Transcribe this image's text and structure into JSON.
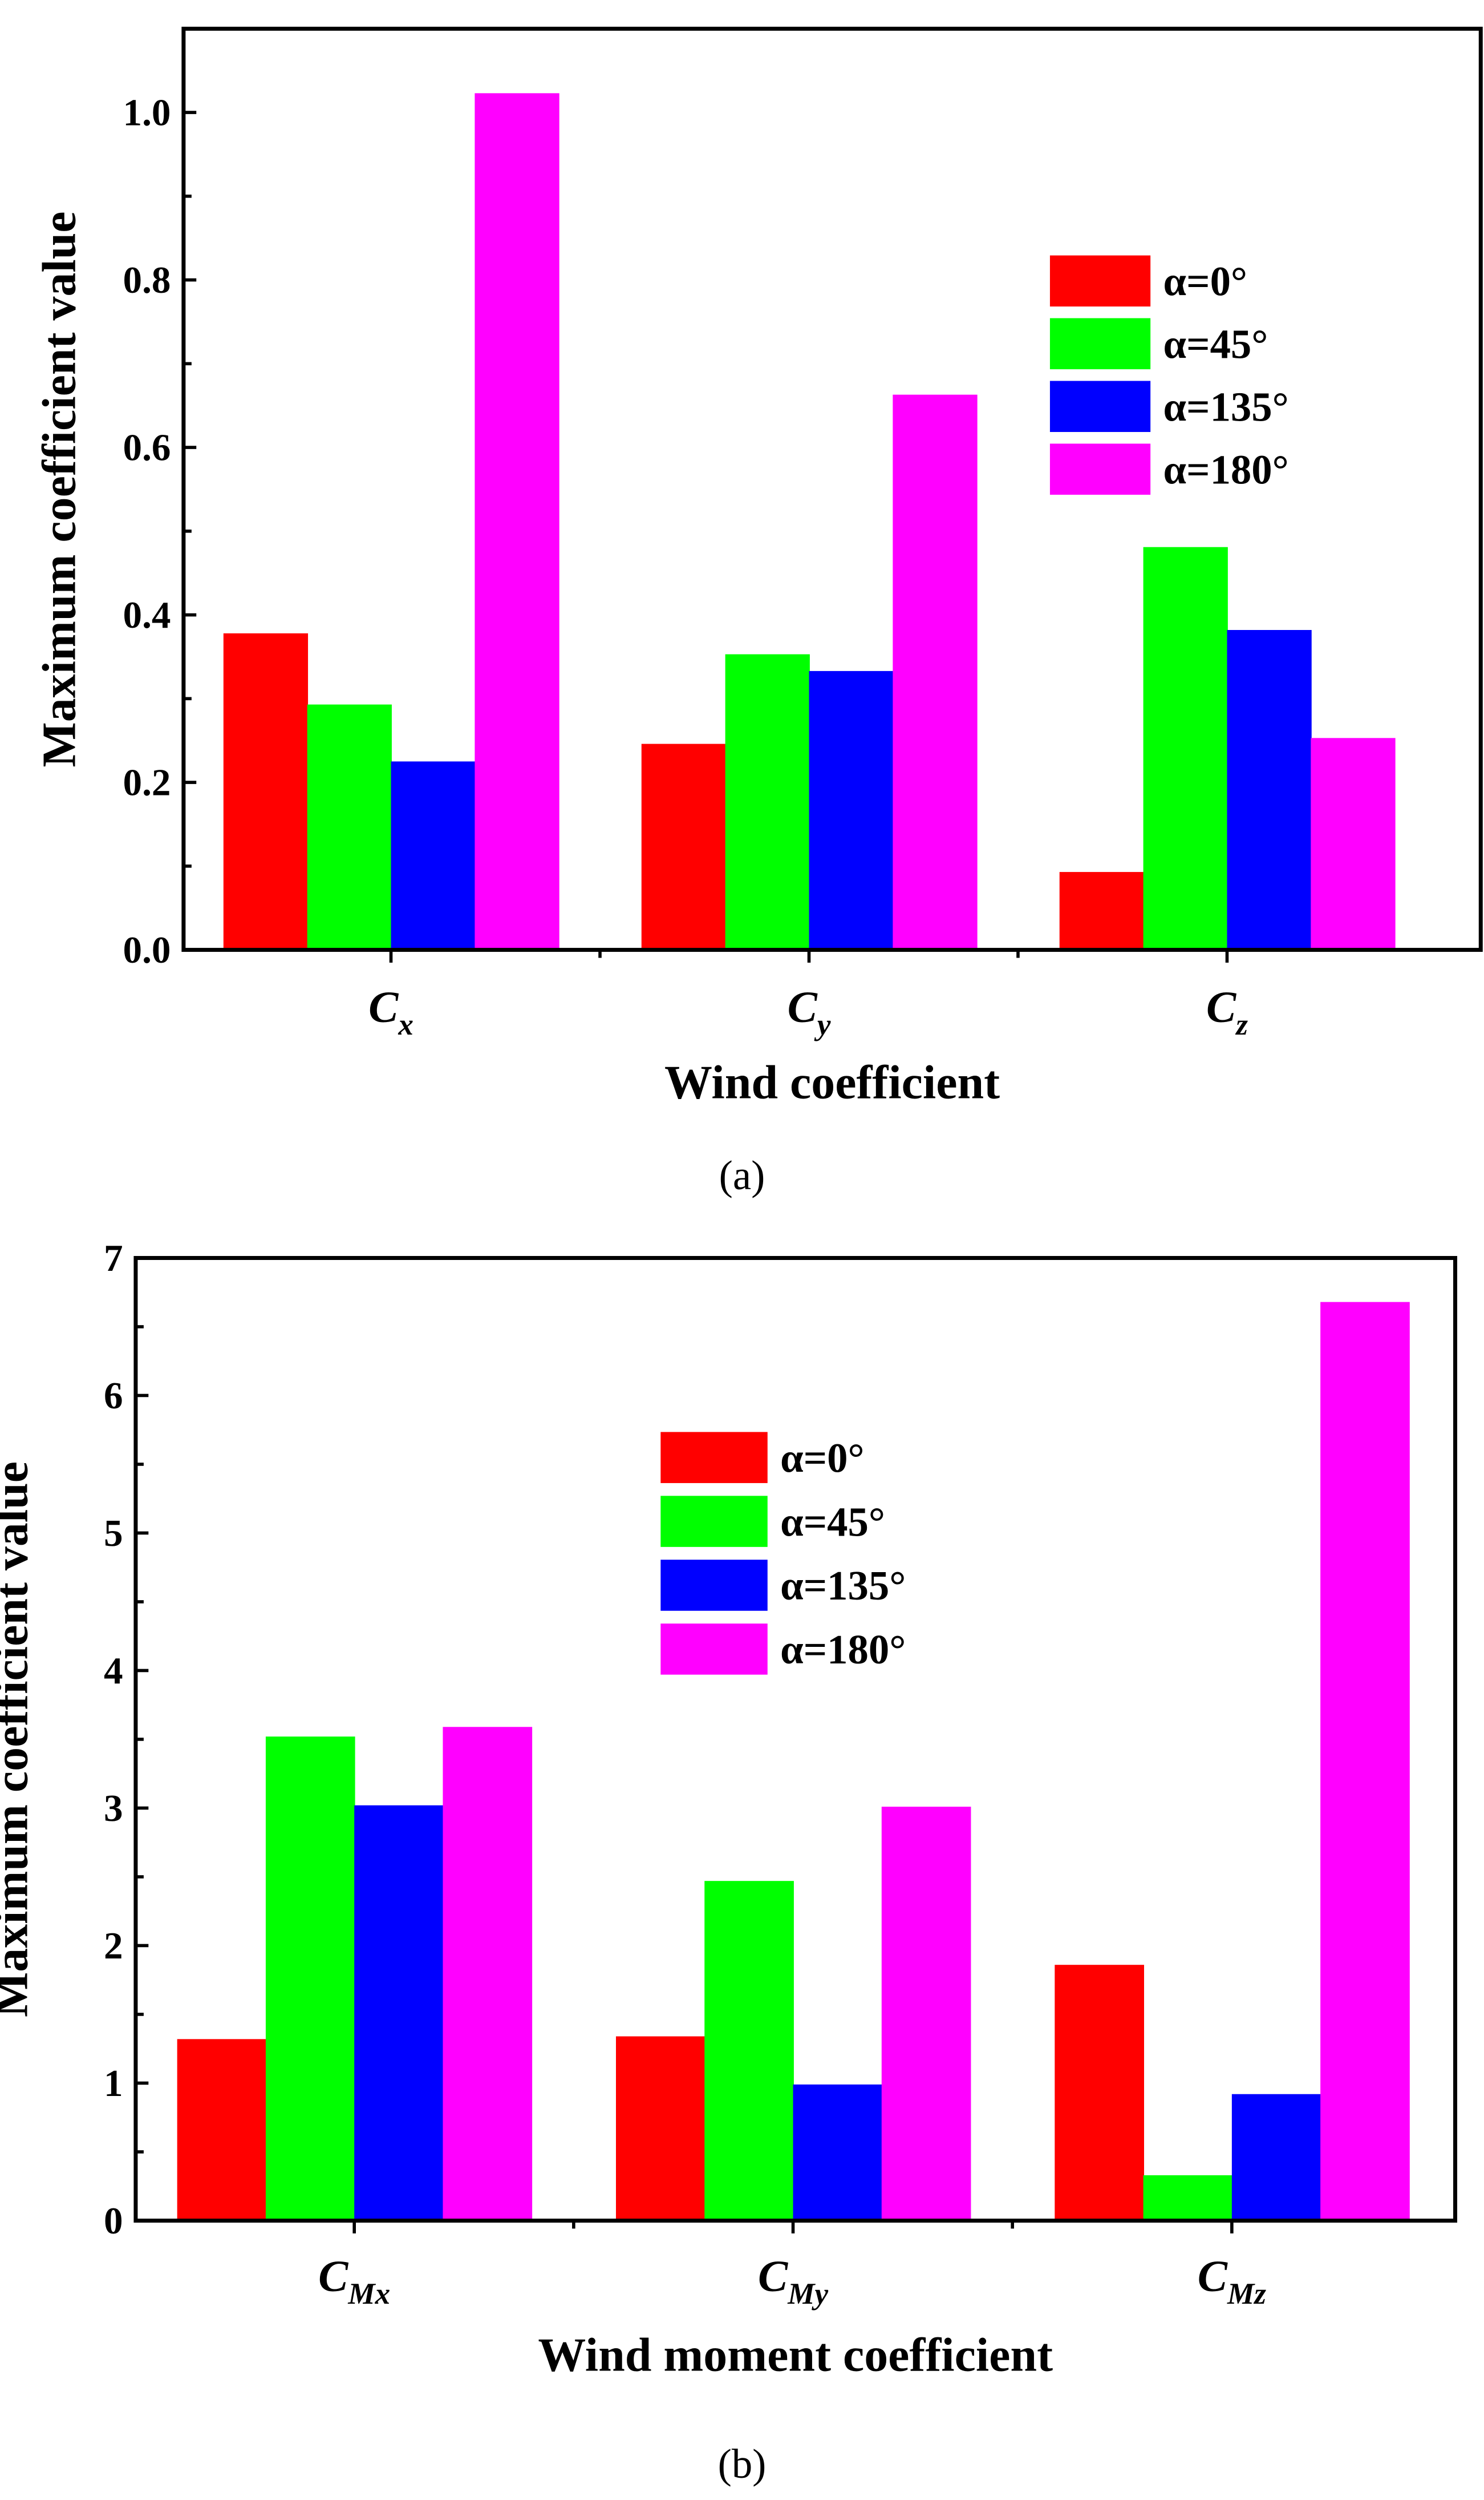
{
  "legend": [
    {
      "label": "α=0°",
      "color": "#ff0000"
    },
    {
      "label": "α=45°",
      "color": "#00ff00"
    },
    {
      "label": "α=135°",
      "color": "#0000ff"
    },
    {
      "label": "α=180°",
      "color": "#ff00ff"
    }
  ],
  "chart_data": [
    {
      "type": "bar",
      "panel": "(a)",
      "xlabel": "Wind coefficient",
      "ylabel": "Maximum coefficient value",
      "categories": [
        {
          "main": "C",
          "sub": "x"
        },
        {
          "main": "C",
          "sub": "y"
        },
        {
          "main": "C",
          "sub": "z"
        }
      ],
      "ylim": [
        0,
        1.1
      ],
      "yticks": [
        0.0,
        0.2,
        0.4,
        0.6,
        0.8,
        1.0
      ],
      "ytick_labels": [
        "0.0",
        "0.2",
        "0.4",
        "0.6",
        "0.8",
        "1.0"
      ],
      "legend_position": "top-right",
      "series": [
        {
          "name": "α=0°",
          "values": [
            0.378,
            0.246,
            0.093
          ]
        },
        {
          "name": "α=45°",
          "values": [
            0.293,
            0.353,
            0.481
          ]
        },
        {
          "name": "α=135°",
          "values": [
            0.225,
            0.333,
            0.382
          ]
        },
        {
          "name": "α=180°",
          "values": [
            1.023,
            0.663,
            0.253
          ]
        }
      ]
    },
    {
      "type": "bar",
      "panel": "(b)",
      "xlabel": "Wind moment coefficient",
      "ylabel": "Maximum coefficient value",
      "categories": [
        {
          "main": "C",
          "sub": "Mx"
        },
        {
          "main": "C",
          "sub": "My"
        },
        {
          "main": "C",
          "sub": "Mz"
        }
      ],
      "ylim": [
        0,
        7
      ],
      "yticks": [
        0,
        1,
        2,
        3,
        4,
        5,
        6,
        7
      ],
      "ytick_labels": [
        "0",
        "1",
        "2",
        "3",
        "4",
        "5",
        "6",
        "7"
      ],
      "legend_position": "top-center",
      "series": [
        {
          "name": "α=0°",
          "values": [
            1.32,
            1.34,
            1.86
          ]
        },
        {
          "name": "α=45°",
          "values": [
            3.52,
            2.47,
            0.33
          ]
        },
        {
          "name": "α=135°",
          "values": [
            3.02,
            0.99,
            0.92
          ]
        },
        {
          "name": "α=180°",
          "values": [
            3.59,
            3.01,
            6.68
          ]
        }
      ]
    }
  ]
}
